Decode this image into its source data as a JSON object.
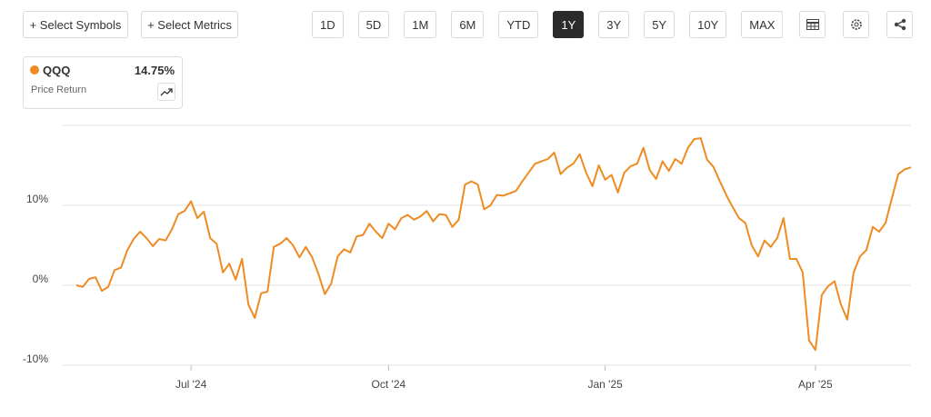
{
  "toolbar": {
    "select_symbols": "+ Select Symbols",
    "select_metrics": "+ Select Metrics",
    "ranges": [
      "1D",
      "5D",
      "1M",
      "6M",
      "YTD",
      "1Y",
      "3Y",
      "5Y",
      "10Y",
      "MAX"
    ],
    "active_range": "1Y"
  },
  "legend_card": {
    "change": "14.75%",
    "metric": "Price Return"
  },
  "chart_data": {
    "type": "line",
    "grid": true,
    "ylim": [
      -10,
      20
    ],
    "yticks": [
      {
        "value": -10,
        "label": "-10%"
      },
      {
        "value": 0,
        "label": "0%"
      },
      {
        "value": 10,
        "label": "10%"
      }
    ],
    "categories": [
      null,
      null,
      null,
      null,
      null,
      null,
      null,
      null,
      null,
      null,
      null,
      null,
      null,
      null,
      null,
      null,
      null,
      null,
      "Jul '24",
      null,
      null,
      null,
      null,
      null,
      null,
      null,
      null,
      null,
      null,
      null,
      null,
      null,
      null,
      null,
      null,
      null,
      null,
      null,
      null,
      null,
      null,
      null,
      null,
      null,
      null,
      null,
      null,
      null,
      null,
      "Oct '24",
      null,
      null,
      null,
      null,
      null,
      null,
      null,
      null,
      null,
      null,
      null,
      null,
      null,
      null,
      null,
      null,
      null,
      null,
      null,
      null,
      null,
      null,
      null,
      null,
      null,
      null,
      null,
      null,
      null,
      null,
      null,
      null,
      null,
      "Jan '25",
      null,
      null,
      null,
      null,
      null,
      null,
      null,
      null,
      null,
      null,
      null,
      null,
      null,
      null,
      null,
      null,
      null,
      null,
      null,
      null,
      null,
      null,
      null,
      null,
      null,
      null,
      null,
      null,
      null,
      null,
      null,
      null,
      "Apr '25",
      null,
      null,
      null,
      null,
      null,
      null,
      null,
      null,
      null,
      null,
      null,
      null,
      null,
      null,
      null
    ],
    "series": [
      {
        "name": "QQQ",
        "color": "#ee8b22",
        "values": [
          0,
          -0.2,
          0.8,
          1.0,
          -0.7,
          -0.2,
          1.9,
          2.2,
          4.4,
          5.8,
          6.7,
          5.9,
          4.9,
          5.8,
          5.6,
          7.0,
          8.9,
          9.3,
          10.5,
          8.4,
          9.2,
          5.9,
          5.2,
          1.6,
          2.7,
          0.7,
          3.3,
          -2.4,
          -4.1,
          -1.0,
          -0.8,
          4.8,
          5.2,
          5.9,
          5.0,
          3.5,
          4.8,
          3.5,
          1.4,
          -1.1,
          0.2,
          3.6,
          4.5,
          4.1,
          6.1,
          6.3,
          7.7,
          6.7,
          5.9,
          7.7,
          7.0,
          8.4,
          8.8,
          8.2,
          8.6,
          9.3,
          8.0,
          8.9,
          8.8,
          7.3,
          8.2,
          12.6,
          13.0,
          12.6,
          9.5,
          10.0,
          11.3,
          11.2,
          11.5,
          11.8,
          13.0,
          14.1,
          15.2,
          15.5,
          15.8,
          16.6,
          13.9,
          14.7,
          15.2,
          16.4,
          14.1,
          12.4,
          15.0,
          13.2,
          13.8,
          11.6,
          14.1,
          14.9,
          15.2,
          17.2,
          14.4,
          13.3,
          15.5,
          14.3,
          15.8,
          15.2,
          17.2,
          18.3,
          18.4,
          15.7,
          14.8,
          13.0,
          11.3,
          9.8,
          8.4,
          7.8,
          5.0,
          3.6,
          5.6,
          4.8,
          5.9,
          8.4,
          3.3,
          3.3,
          1.6,
          -6.9,
          -8.1,
          -1.2,
          -0.1,
          0.5,
          -2.4,
          -4.3,
          1.6,
          3.6,
          4.4,
          7.3,
          6.7,
          7.8,
          10.9,
          13.9,
          14.5,
          14.75
        ]
      }
    ]
  }
}
